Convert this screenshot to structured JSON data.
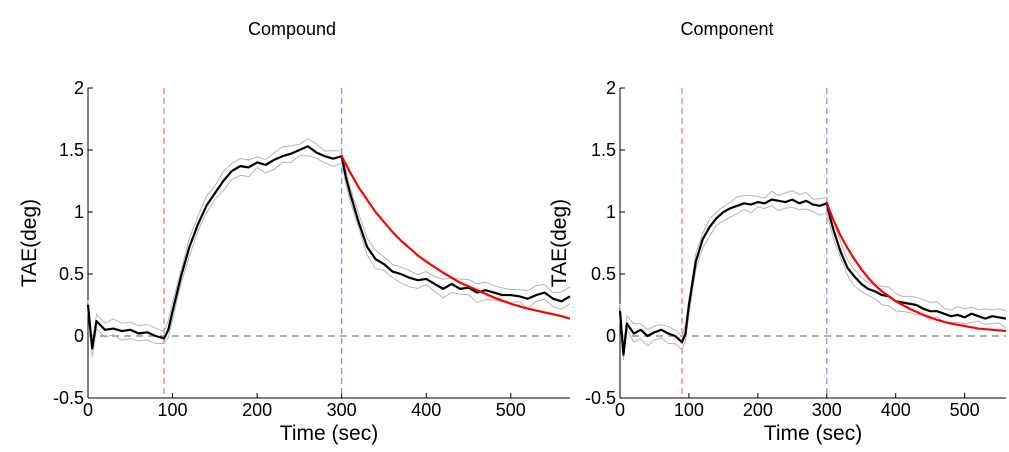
{
  "chart_data": [
    {
      "type": "line",
      "title": "Compound",
      "xlabel": "Time (sec)",
      "ylabel": "TAE(deg)",
      "xlim": [
        0,
        570
      ],
      "ylim": [
        -0.5,
        2
      ],
      "x_ticks": [
        "0",
        "100",
        "200",
        "300",
        "400",
        "500"
      ],
      "y_ticks": [
        "-0.5",
        "0",
        "0.5",
        "1",
        "1.5",
        "2"
      ],
      "grid": false,
      "vlines": [
        {
          "x": 90,
          "color": "#ff6b6b",
          "style": "dashed"
        },
        {
          "x": 300,
          "color": "#6b8cff",
          "style": "dashed"
        }
      ],
      "hline": {
        "y": 0,
        "color": "#808080",
        "style": "dashed"
      },
      "series": [
        {
          "role": "mean",
          "color": "#000000",
          "x": [
            0,
            5,
            10,
            20,
            30,
            40,
            50,
            60,
            70,
            80,
            90,
            95,
            100,
            110,
            120,
            130,
            140,
            150,
            160,
            170,
            180,
            190,
            200,
            210,
            220,
            230,
            240,
            250,
            260,
            270,
            280,
            290,
            300,
            305,
            310,
            320,
            330,
            340,
            350,
            360,
            370,
            380,
            390,
            400,
            410,
            420,
            430,
            440,
            450,
            460,
            470,
            480,
            490,
            500,
            510,
            520,
            530,
            540,
            550,
            560,
            570
          ],
          "values": [
            0.25,
            -0.1,
            0.12,
            0.05,
            0.06,
            0.04,
            0.05,
            0.02,
            0.03,
            0.0,
            -0.02,
            0.05,
            0.2,
            0.48,
            0.72,
            0.9,
            1.05,
            1.15,
            1.25,
            1.33,
            1.37,
            1.36,
            1.4,
            1.38,
            1.42,
            1.45,
            1.47,
            1.5,
            1.53,
            1.48,
            1.45,
            1.43,
            1.45,
            1.28,
            1.15,
            0.92,
            0.72,
            0.62,
            0.58,
            0.52,
            0.5,
            0.47,
            0.45,
            0.46,
            0.42,
            0.38,
            0.42,
            0.38,
            0.39,
            0.35,
            0.37,
            0.35,
            0.33,
            0.33,
            0.32,
            0.3,
            0.33,
            0.35,
            0.3,
            0.28,
            0.32
          ]
        },
        {
          "role": "exponential-fit",
          "color": "#ff0000",
          "x": [
            300,
            310,
            320,
            330,
            340,
            350,
            360,
            370,
            380,
            390,
            400,
            420,
            440,
            460,
            480,
            500,
            520,
            540,
            560,
            570
          ],
          "values": [
            1.45,
            1.32,
            1.2,
            1.1,
            1.0,
            0.92,
            0.84,
            0.77,
            0.71,
            0.65,
            0.6,
            0.51,
            0.43,
            0.37,
            0.31,
            0.26,
            0.22,
            0.19,
            0.16,
            0.14
          ]
        }
      ]
    },
    {
      "type": "line",
      "title": "Component",
      "xlabel": "Time (sec)",
      "ylabel": "TAE(deg)",
      "xlim": [
        0,
        560
      ],
      "ylim": [
        -0.5,
        2
      ],
      "x_ticks": [
        "0",
        "100",
        "200",
        "300",
        "400",
        "500"
      ],
      "y_ticks": [
        "-0.5",
        "0",
        "0.5",
        "1",
        "1.5",
        "2"
      ],
      "grid": false,
      "vlines": [
        {
          "x": 90,
          "color": "#ff6b6b",
          "style": "dashed"
        },
        {
          "x": 300,
          "color": "#6b8cff",
          "style": "dashed"
        }
      ],
      "hline": {
        "y": 0,
        "color": "#808080",
        "style": "dashed"
      },
      "series": [
        {
          "role": "mean",
          "color": "#000000",
          "x": [
            0,
            5,
            10,
            20,
            30,
            40,
            50,
            60,
            70,
            80,
            90,
            95,
            100,
            110,
            120,
            130,
            140,
            150,
            160,
            170,
            180,
            190,
            200,
            210,
            220,
            230,
            240,
            250,
            260,
            270,
            280,
            290,
            300,
            305,
            310,
            320,
            330,
            340,
            350,
            360,
            370,
            380,
            390,
            400,
            410,
            420,
            430,
            440,
            450,
            460,
            470,
            480,
            490,
            500,
            510,
            520,
            530,
            540,
            550,
            560
          ],
          "values": [
            0.2,
            -0.15,
            0.1,
            0.02,
            0.05,
            0.0,
            0.03,
            0.05,
            0.02,
            0.0,
            -0.05,
            0.02,
            0.25,
            0.6,
            0.78,
            0.88,
            0.95,
            1.0,
            1.03,
            1.05,
            1.07,
            1.06,
            1.08,
            1.07,
            1.1,
            1.09,
            1.08,
            1.1,
            1.07,
            1.09,
            1.06,
            1.05,
            1.07,
            0.95,
            0.85,
            0.68,
            0.55,
            0.48,
            0.42,
            0.38,
            0.36,
            0.33,
            0.32,
            0.28,
            0.27,
            0.26,
            0.25,
            0.22,
            0.2,
            0.2,
            0.18,
            0.16,
            0.17,
            0.15,
            0.18,
            0.16,
            0.14,
            0.16,
            0.15,
            0.14
          ]
        },
        {
          "role": "exponential-fit",
          "color": "#ff0000",
          "x": [
            300,
            310,
            320,
            330,
            340,
            350,
            360,
            370,
            380,
            390,
            400,
            420,
            440,
            460,
            480,
            500,
            520,
            540,
            560
          ],
          "values": [
            1.07,
            0.93,
            0.81,
            0.71,
            0.62,
            0.54,
            0.47,
            0.41,
            0.36,
            0.32,
            0.28,
            0.22,
            0.17,
            0.13,
            0.1,
            0.08,
            0.06,
            0.05,
            0.04
          ]
        }
      ]
    }
  ]
}
